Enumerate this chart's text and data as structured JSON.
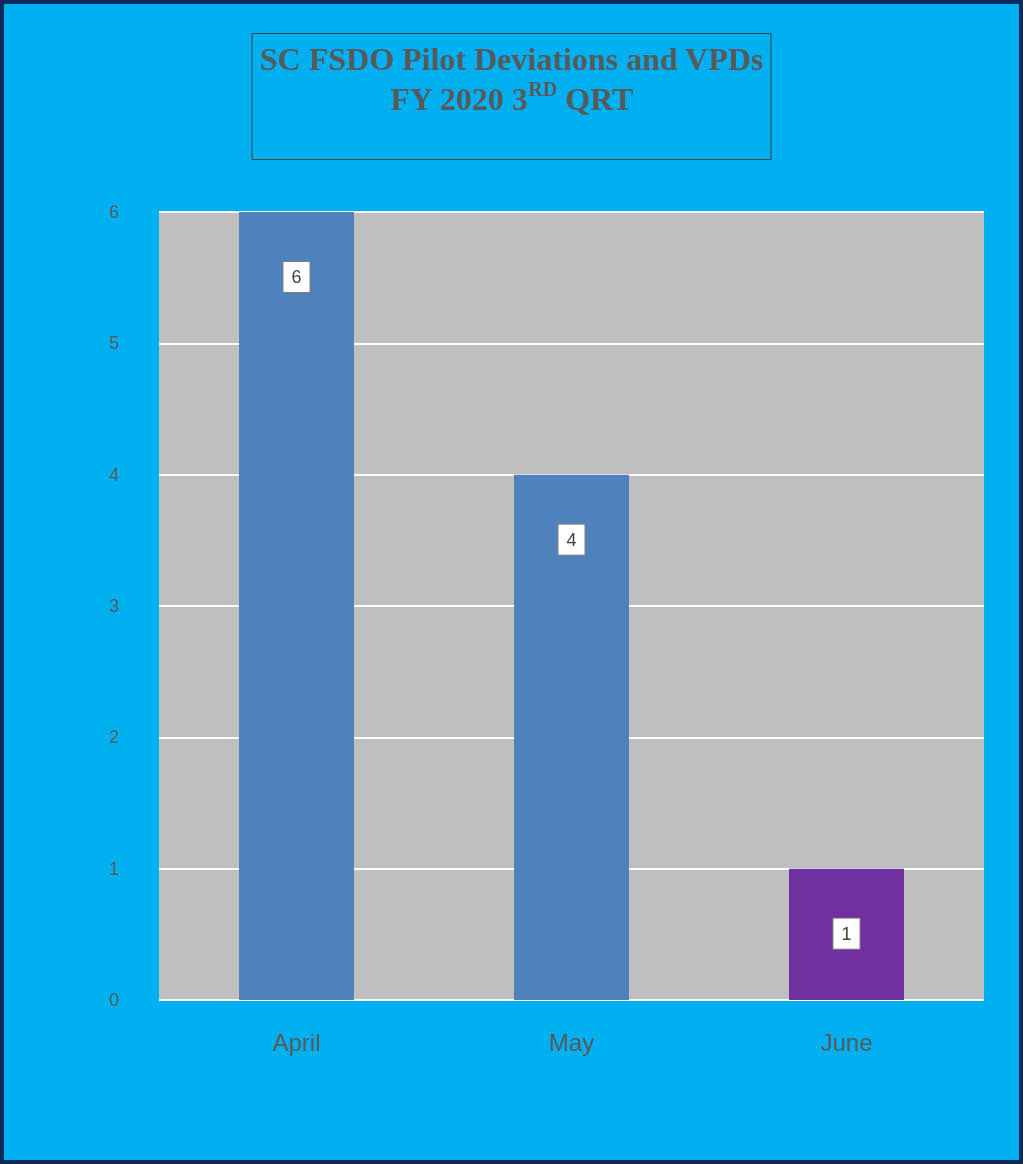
{
  "chart_data": {
    "type": "bar",
    "title": "SC FSDO Pilot Deviations and VPDs\nFY 2020 3$^{RD}$ QRT",
    "categories": [
      "April",
      "May",
      "June"
    ],
    "values": [
      6,
      4,
      1
    ],
    "colors": [
      "#4f81bd",
      "#4f81bd",
      "#7030a0"
    ],
    "ylim": [
      0,
      6
    ],
    "yticks": [
      0,
      1,
      2,
      3,
      4,
      5,
      6
    ],
    "grid": "y",
    "data_labels": true
  }
}
